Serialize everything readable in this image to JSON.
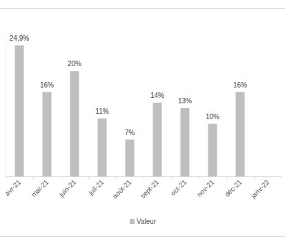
{
  "chart_data": {
    "type": "bar",
    "categories": [
      "avr-21",
      "mai-21",
      "juin-21",
      "juil-21",
      "août-21",
      "sept-21",
      "oct-21",
      "nov-21",
      "déc-21",
      "janv-22"
    ],
    "series": [
      {
        "name": "Valeur",
        "color": "#bfbfbf",
        "values": [
          24.9,
          16,
          20,
          11,
          7,
          14,
          13,
          10,
          16,
          null
        ],
        "value_labels": [
          "24,9%",
          "16%",
          "20%",
          "11%",
          "7%",
          "14%",
          "13%",
          "10%",
          "16%",
          null
        ]
      }
    ],
    "ylim": [
      0,
      25
    ],
    "yticks": [],
    "tick_labels": "x",
    "data_labels": true,
    "legend": "bottom",
    "grid": false
  }
}
